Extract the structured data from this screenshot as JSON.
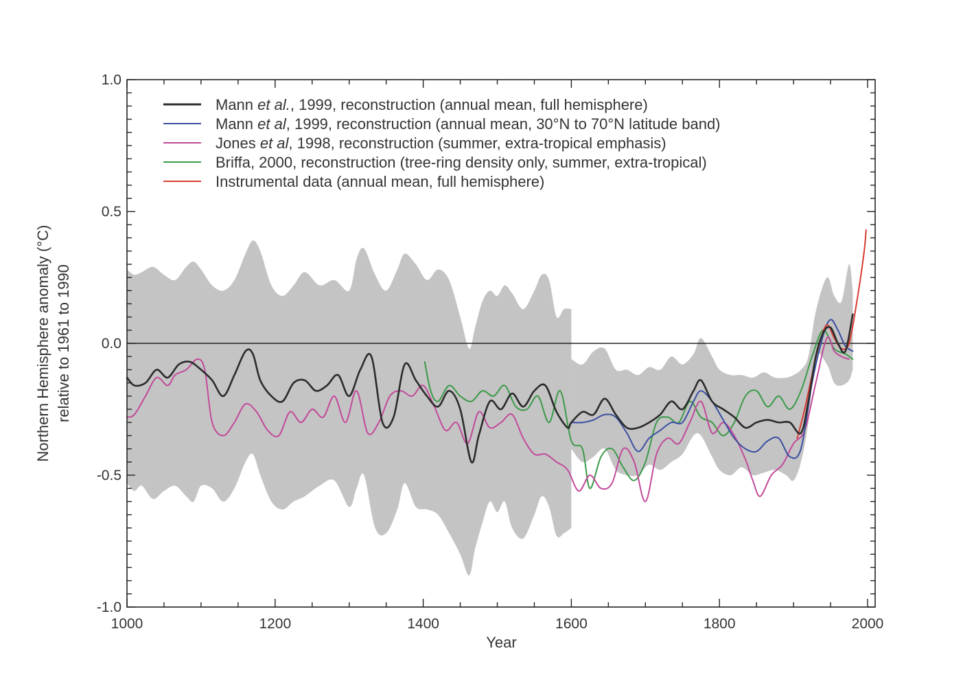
{
  "chart_data": {
    "type": "line",
    "title": "",
    "xlabel": "Year",
    "ylabel": [
      "Northern Hemisphere anomaly (°C)",
      "relative to 1961 to 1990"
    ],
    "xlim": [
      1000,
      2000
    ],
    "ylim": [
      -1.0,
      1.0
    ],
    "x_ticks": [
      1000,
      1200,
      1400,
      1600,
      1800,
      2000
    ],
    "x_tick_labels": [
      "1000",
      "1200",
      "1400",
      "1600",
      "1800",
      "2000"
    ],
    "y_ticks": [
      1.0,
      0.5,
      0.0,
      -0.5,
      -1.0
    ],
    "y_tick_labels": [
      "1.0",
      "0.5",
      "0.0",
      "-0.5",
      "-1.0"
    ],
    "zero_line": true,
    "legend_position": "top-left",
    "legend": [
      {
        "series": "mann_full",
        "parts": [
          "Mann ",
          "et al.",
          ", 1999, reconstruction (annual mean, full hemisphere)"
        ]
      },
      {
        "series": "mann_band",
        "parts": [
          "Mann ",
          "et al",
          ", 1999, reconstruction (annual mean, 30°N to 70°N latitude band)"
        ]
      },
      {
        "series": "jones",
        "parts": [
          "Jones ",
          "et al",
          ", 1998, reconstruction (summer, extra-tropical emphasis)"
        ]
      },
      {
        "series": "briffa",
        "parts": [
          "Briffa, 2000, reconstruction (tree-ring density only, summer, extra-tropical)"
        ]
      },
      {
        "series": "instrumental",
        "parts": [
          "Instrumental data (annual mean, full hemisphere)"
        ]
      }
    ],
    "uncertainty_band": {
      "color": "#c4c4c4",
      "x": [
        1000,
        1010,
        1020,
        1035,
        1050,
        1065,
        1080,
        1090,
        1100,
        1115,
        1130,
        1145,
        1160,
        1170,
        1180,
        1195,
        1210,
        1225,
        1240,
        1260,
        1280,
        1300,
        1310,
        1320,
        1335,
        1350,
        1365,
        1375,
        1390,
        1405,
        1420,
        1435,
        1450,
        1462,
        1470,
        1480,
        1490,
        1500,
        1510,
        1520,
        1535,
        1550,
        1560,
        1570,
        1580,
        1590,
        1600
      ],
      "upper": [
        0.28,
        0.26,
        0.27,
        0.29,
        0.26,
        0.24,
        0.29,
        0.31,
        0.28,
        0.22,
        0.2,
        0.24,
        0.34,
        0.39,
        0.35,
        0.22,
        0.18,
        0.22,
        0.27,
        0.22,
        0.24,
        0.2,
        0.32,
        0.36,
        0.26,
        0.2,
        0.28,
        0.34,
        0.3,
        0.24,
        0.28,
        0.24,
        0.1,
        -0.02,
        0.06,
        0.16,
        0.2,
        0.18,
        0.22,
        0.19,
        0.13,
        0.2,
        0.26,
        0.24,
        0.1,
        0.13,
        0.13
      ],
      "lower": [
        -0.53,
        -0.56,
        -0.54,
        -0.59,
        -0.56,
        -0.54,
        -0.58,
        -0.6,
        -0.54,
        -0.55,
        -0.6,
        -0.55,
        -0.45,
        -0.42,
        -0.5,
        -0.6,
        -0.63,
        -0.6,
        -0.58,
        -0.54,
        -0.52,
        -0.62,
        -0.55,
        -0.5,
        -0.7,
        -0.72,
        -0.63,
        -0.53,
        -0.62,
        -0.63,
        -0.65,
        -0.72,
        -0.8,
        -0.88,
        -0.78,
        -0.68,
        -0.6,
        -0.64,
        -0.6,
        -0.7,
        -0.74,
        -0.65,
        -0.58,
        -0.62,
        -0.73,
        -0.72,
        -0.7
      ]
    },
    "uncertainty_band_2": {
      "color": "#c4c4c4",
      "x": [
        1600,
        1615,
        1630,
        1645,
        1660,
        1675,
        1690,
        1705,
        1720,
        1735,
        1750,
        1765,
        1775,
        1790,
        1800,
        1815,
        1830,
        1845,
        1860,
        1875,
        1890,
        1900,
        1910,
        1920,
        1930,
        1945,
        1955,
        1965,
        1975,
        1980
      ],
      "upper": [
        -0.06,
        -0.08,
        -0.03,
        -0.02,
        -0.1,
        -0.1,
        -0.12,
        -0.09,
        -0.1,
        -0.05,
        -0.08,
        -0.04,
        0.02,
        -0.05,
        -0.1,
        -0.12,
        -0.12,
        -0.13,
        -0.11,
        -0.13,
        -0.13,
        -0.12,
        -0.1,
        -0.05,
        0.12,
        0.25,
        0.18,
        0.16,
        0.3,
        0.2
      ],
      "lower": [
        -0.4,
        -0.45,
        -0.43,
        -0.4,
        -0.48,
        -0.5,
        -0.5,
        -0.46,
        -0.48,
        -0.45,
        -0.42,
        -0.35,
        -0.35,
        -0.43,
        -0.48,
        -0.5,
        -0.47,
        -0.5,
        -0.49,
        -0.48,
        -0.5,
        -0.52,
        -0.45,
        -0.3,
        -0.05,
        -0.08,
        -0.15,
        -0.16,
        -0.14,
        -0.1
      ]
    },
    "series": [
      {
        "name": "mann_full",
        "color": "#2b2b2b",
        "x": [
          1000,
          1010,
          1025,
          1040,
          1055,
          1070,
          1085,
          1100,
          1115,
          1130,
          1145,
          1160,
          1170,
          1180,
          1195,
          1210,
          1225,
          1240,
          1255,
          1270,
          1285,
          1300,
          1315,
          1330,
          1345,
          1360,
          1375,
          1390,
          1405,
          1420,
          1435,
          1450,
          1465,
          1475,
          1490,
          1505,
          1520,
          1535,
          1550,
          1565,
          1580,
          1595,
          1600,
          1615,
          1630,
          1645,
          1660,
          1675,
          1690,
          1705,
          1720,
          1735,
          1750,
          1765,
          1775,
          1790,
          1805,
          1820,
          1835,
          1850,
          1865,
          1880,
          1895,
          1910,
          1920,
          1930,
          1940,
          1950,
          1960,
          1970,
          1980
        ],
        "y": [
          -0.13,
          -0.16,
          -0.15,
          -0.1,
          -0.13,
          -0.08,
          -0.07,
          -0.1,
          -0.14,
          -0.2,
          -0.12,
          -0.03,
          -0.04,
          -0.14,
          -0.2,
          -0.22,
          -0.15,
          -0.14,
          -0.18,
          -0.16,
          -0.12,
          -0.2,
          -0.1,
          -0.05,
          -0.3,
          -0.28,
          -0.08,
          -0.14,
          -0.2,
          -0.24,
          -0.18,
          -0.25,
          -0.45,
          -0.35,
          -0.22,
          -0.25,
          -0.19,
          -0.24,
          -0.18,
          -0.16,
          -0.26,
          -0.32,
          -0.3,
          -0.26,
          -0.27,
          -0.21,
          -0.27,
          -0.32,
          -0.32,
          -0.3,
          -0.27,
          -0.22,
          -0.25,
          -0.18,
          -0.14,
          -0.22,
          -0.25,
          -0.28,
          -0.32,
          -0.3,
          -0.29,
          -0.3,
          -0.3,
          -0.34,
          -0.22,
          -0.05,
          0.04,
          0.06,
          0.0,
          -0.03,
          0.11
        ]
      },
      {
        "name": "mann_band",
        "color": "#3a4fa0",
        "x": [
          1600,
          1615,
          1630,
          1645,
          1660,
          1675,
          1690,
          1705,
          1720,
          1735,
          1750,
          1765,
          1775,
          1790,
          1805,
          1820,
          1835,
          1850,
          1865,
          1880,
          1895,
          1910,
          1925,
          1940,
          1950,
          1960,
          1970,
          1980
        ],
        "y": [
          -0.3,
          -0.3,
          -0.29,
          -0.27,
          -0.28,
          -0.34,
          -0.41,
          -0.36,
          -0.33,
          -0.3,
          -0.3,
          -0.22,
          -0.18,
          -0.22,
          -0.29,
          -0.36,
          -0.4,
          -0.41,
          -0.37,
          -0.36,
          -0.43,
          -0.4,
          -0.15,
          0.03,
          0.09,
          0.05,
          -0.01,
          -0.03
        ]
      },
      {
        "name": "jones",
        "color": "#c24a9a",
        "x": [
          1000,
          1010,
          1025,
          1040,
          1055,
          1065,
          1080,
          1095,
          1105,
          1115,
          1130,
          1145,
          1160,
          1175,
          1190,
          1205,
          1220,
          1235,
          1250,
          1265,
          1280,
          1295,
          1310,
          1325,
          1340,
          1355,
          1370,
          1385,
          1400,
          1415,
          1430,
          1445,
          1460,
          1475,
          1490,
          1505,
          1520,
          1535,
          1550,
          1565,
          1580,
          1595,
          1610,
          1625,
          1640,
          1655,
          1670,
          1685,
          1700,
          1715,
          1730,
          1745,
          1760,
          1775,
          1790,
          1805,
          1820,
          1835,
          1845,
          1855,
          1870,
          1885,
          1900,
          1915,
          1930,
          1945,
          1955,
          1965,
          1975
        ],
        "y": [
          -0.28,
          -0.27,
          -0.2,
          -0.13,
          -0.16,
          -0.12,
          -0.1,
          -0.06,
          -0.1,
          -0.3,
          -0.35,
          -0.3,
          -0.23,
          -0.26,
          -0.33,
          -0.35,
          -0.26,
          -0.3,
          -0.25,
          -0.28,
          -0.2,
          -0.3,
          -0.18,
          -0.34,
          -0.3,
          -0.2,
          -0.18,
          -0.2,
          -0.16,
          -0.24,
          -0.33,
          -0.3,
          -0.38,
          -0.26,
          -0.32,
          -0.3,
          -0.27,
          -0.36,
          -0.42,
          -0.42,
          -0.45,
          -0.48,
          -0.56,
          -0.5,
          -0.55,
          -0.53,
          -0.4,
          -0.45,
          -0.6,
          -0.42,
          -0.36,
          -0.38,
          -0.3,
          -0.22,
          -0.34,
          -0.3,
          -0.35,
          -0.44,
          -0.52,
          -0.58,
          -0.5,
          -0.46,
          -0.38,
          -0.33,
          -0.15,
          0.02,
          -0.03,
          -0.05,
          -0.06
        ]
      },
      {
        "name": "briffa",
        "color": "#3a9a48",
        "x": [
          1402,
          1410,
          1420,
          1435,
          1450,
          1465,
          1480,
          1495,
          1510,
          1525,
          1540,
          1555,
          1570,
          1585,
          1600,
          1615,
          1625,
          1640,
          1655,
          1670,
          1685,
          1700,
          1715,
          1730,
          1745,
          1760,
          1775,
          1790,
          1805,
          1820,
          1835,
          1850,
          1865,
          1880,
          1895,
          1910,
          1925,
          1940,
          1955,
          1970,
          1980
        ],
        "y": [
          -0.07,
          -0.18,
          -0.22,
          -0.16,
          -0.2,
          -0.22,
          -0.18,
          -0.2,
          -0.16,
          -0.24,
          -0.25,
          -0.2,
          -0.3,
          -0.18,
          -0.37,
          -0.4,
          -0.55,
          -0.43,
          -0.4,
          -0.47,
          -0.52,
          -0.45,
          -0.3,
          -0.28,
          -0.3,
          -0.22,
          -0.28,
          -0.3,
          -0.35,
          -0.3,
          -0.2,
          -0.18,
          -0.24,
          -0.2,
          -0.25,
          -0.18,
          -0.05,
          0.05,
          -0.02,
          -0.04,
          -0.06
        ]
      },
      {
        "name": "instrumental",
        "color": "#d83a32",
        "x": [
          1905,
          1915,
          1925,
          1935,
          1945,
          1955,
          1965,
          1975,
          1985,
          1995,
          1998
        ],
        "y": [
          -0.36,
          -0.25,
          -0.12,
          0.0,
          0.07,
          0.02,
          -0.02,
          0.0,
          0.15,
          0.34,
          0.43
        ]
      }
    ]
  }
}
